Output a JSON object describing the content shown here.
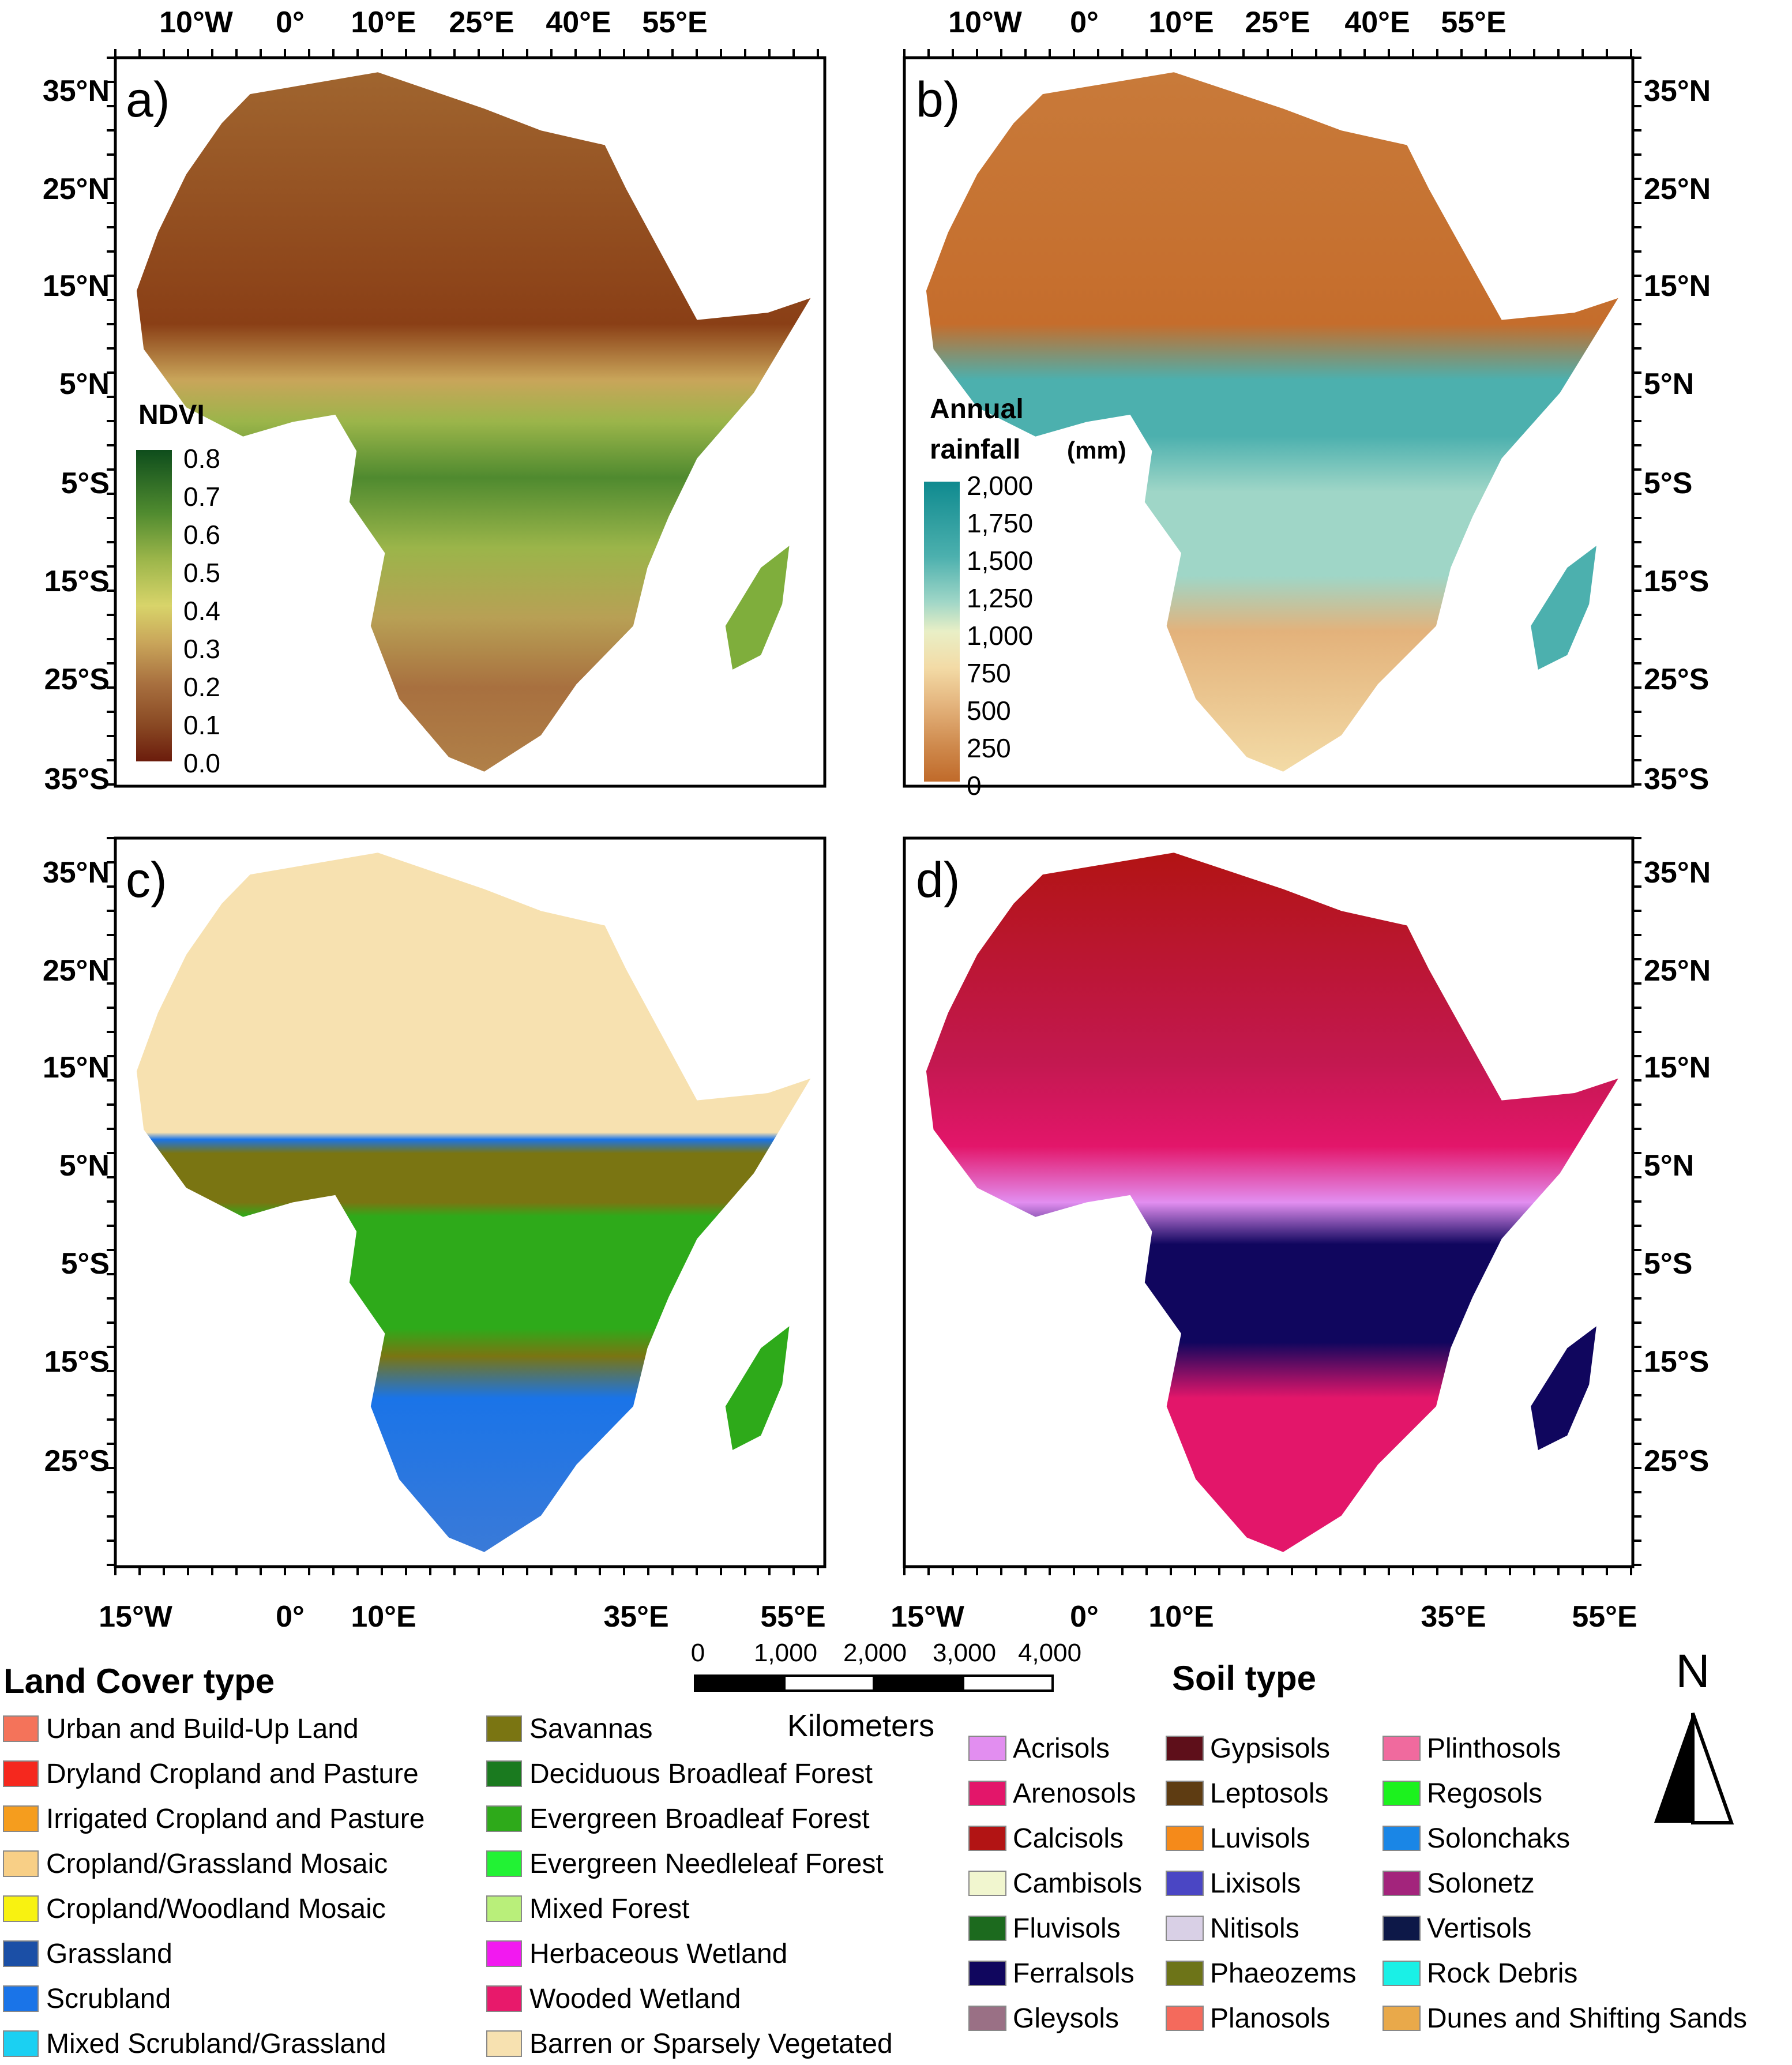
{
  "panels": [
    {
      "id": "a",
      "label": "a)",
      "type": "ndvi"
    },
    {
      "id": "b",
      "label": "b)",
      "type": "rain"
    },
    {
      "id": "c",
      "label": "c)",
      "type": "landcover"
    },
    {
      "id": "d",
      "label": "d)",
      "type": "soil"
    }
  ],
  "axes": {
    "top_lon": [
      "10°W",
      "0°",
      "10°E",
      "25°E",
      "40°E",
      "55°E"
    ],
    "bottom_lon": [
      "15°W",
      "0°",
      "10°E",
      "35°E",
      "55°E"
    ],
    "lat_upper": [
      "35°N",
      "25°N",
      "15°N",
      "5°N",
      "5°S",
      "15°S",
      "25°S",
      "35°S"
    ],
    "lat_lower": [
      "35°N",
      "25°N",
      "15°N",
      "5°N",
      "5°S",
      "15°S",
      "25°S"
    ]
  },
  "ndvi_legend": {
    "title": "NDVI",
    "ticks": [
      "0.8",
      "0.7",
      "0.6",
      "0.5",
      "0.4",
      "0.3",
      "0.2",
      "0.1",
      "0.0"
    ],
    "colors": [
      "#0e4d1c",
      "#4f8a2f",
      "#9bb54a",
      "#d8d46a",
      "#c9a55a",
      "#a8703f",
      "#8a4a24",
      "#6b1c0c"
    ]
  },
  "rain_legend": {
    "title_line1": "Annual",
    "title_line2": "rainfall",
    "unit": "(mm)",
    "ticks": [
      "2,000",
      "1,750",
      "1,500",
      "1,250",
      "1,000",
      "750",
      "500",
      "250",
      "0"
    ],
    "colors": [
      "#0f8a8f",
      "#4cb0ae",
      "#9fd6c7",
      "#e9efc6",
      "#f3dba6",
      "#e3b27b",
      "#cf8a4d",
      "#c06a2a"
    ]
  },
  "scale_bar": {
    "ticks": [
      "0",
      "1,000",
      "2,000",
      "3,000",
      "4,000"
    ],
    "unit": "Kilometers"
  },
  "north_arrow": {
    "label": "N"
  },
  "land_cover_legend": {
    "title": "Land Cover type",
    "items": [
      {
        "label": "Urban and Build-Up Land",
        "color": "#f4735a"
      },
      {
        "label": "Dryland Cropland and Pasture",
        "color": "#f5281e"
      },
      {
        "label": "Irrigated Cropland and Pasture",
        "color": "#f59d1e"
      },
      {
        "label": "Cropland/Grassland Mosaic",
        "color": "#f8cf86"
      },
      {
        "label": "Cropland/Woodland Mosaic",
        "color": "#f8f211"
      },
      {
        "label": "Grassland",
        "color": "#1b4fa6"
      },
      {
        "label": "Scrubland",
        "color": "#1a74e8"
      },
      {
        "label": "Mixed Scrubland/Grassland",
        "color": "#1bd0f2"
      },
      {
        "label": "Savannas",
        "color": "#7a7512"
      },
      {
        "label": "Deciduous Broadleaf Forest",
        "color": "#1a7a1f"
      },
      {
        "label": "Evergreen Broadleaf Forest",
        "color": "#2eaa1a"
      },
      {
        "label": "Evergreen Needleleaf Forest",
        "color": "#22f234"
      },
      {
        "label": "Mixed Forest",
        "color": "#b9ef7a"
      },
      {
        "label": "Herbaceous Wetland",
        "color": "#f219f0"
      },
      {
        "label": "Wooded Wetland",
        "color": "#e8196b"
      },
      {
        "label": "Barren or Sparsely Vegetated",
        "color": "#f7e1b0"
      }
    ]
  },
  "soil_legend": {
    "title": "Soil type",
    "items": [
      {
        "label": "Acrisols",
        "color": "#e28ef0"
      },
      {
        "label": "Arenosols",
        "color": "#e3166a"
      },
      {
        "label": "Calcisols",
        "color": "#b21414"
      },
      {
        "label": "Cambisols",
        "color": "#f1f6cf"
      },
      {
        "label": "Fluvisols",
        "color": "#1c6a1e"
      },
      {
        "label": "Ferralsols",
        "color": "#10065e"
      },
      {
        "label": "Gleysols",
        "color": "#9a7085"
      },
      {
        "label": "Gypsisols",
        "color": "#5e0f1a"
      },
      {
        "label": "Leptosols",
        "color": "#5e3c12"
      },
      {
        "label": "Luvisols",
        "color": "#f58a1a"
      },
      {
        "label": "Lixisols",
        "color": "#4a46c4"
      },
      {
        "label": "Nitisols",
        "color": "#d9d0e6"
      },
      {
        "label": "Phaeozems",
        "color": "#6d7418"
      },
      {
        "label": "Planosols",
        "color": "#f46a5c"
      },
      {
        "label": "Plinthosols",
        "color": "#f06a9e"
      },
      {
        "label": "Regosols",
        "color": "#1cf21e"
      },
      {
        "label": "Solonchaks",
        "color": "#1a86e6"
      },
      {
        "label": "Solonetz",
        "color": "#a3247c"
      },
      {
        "label": "Vertisols",
        "color": "#0d1848"
      },
      {
        "label": "Rock Debris",
        "color": "#1af0e6"
      },
      {
        "label": "Dunes and Shifting Sands",
        "color": "#e9a94a"
      }
    ]
  }
}
